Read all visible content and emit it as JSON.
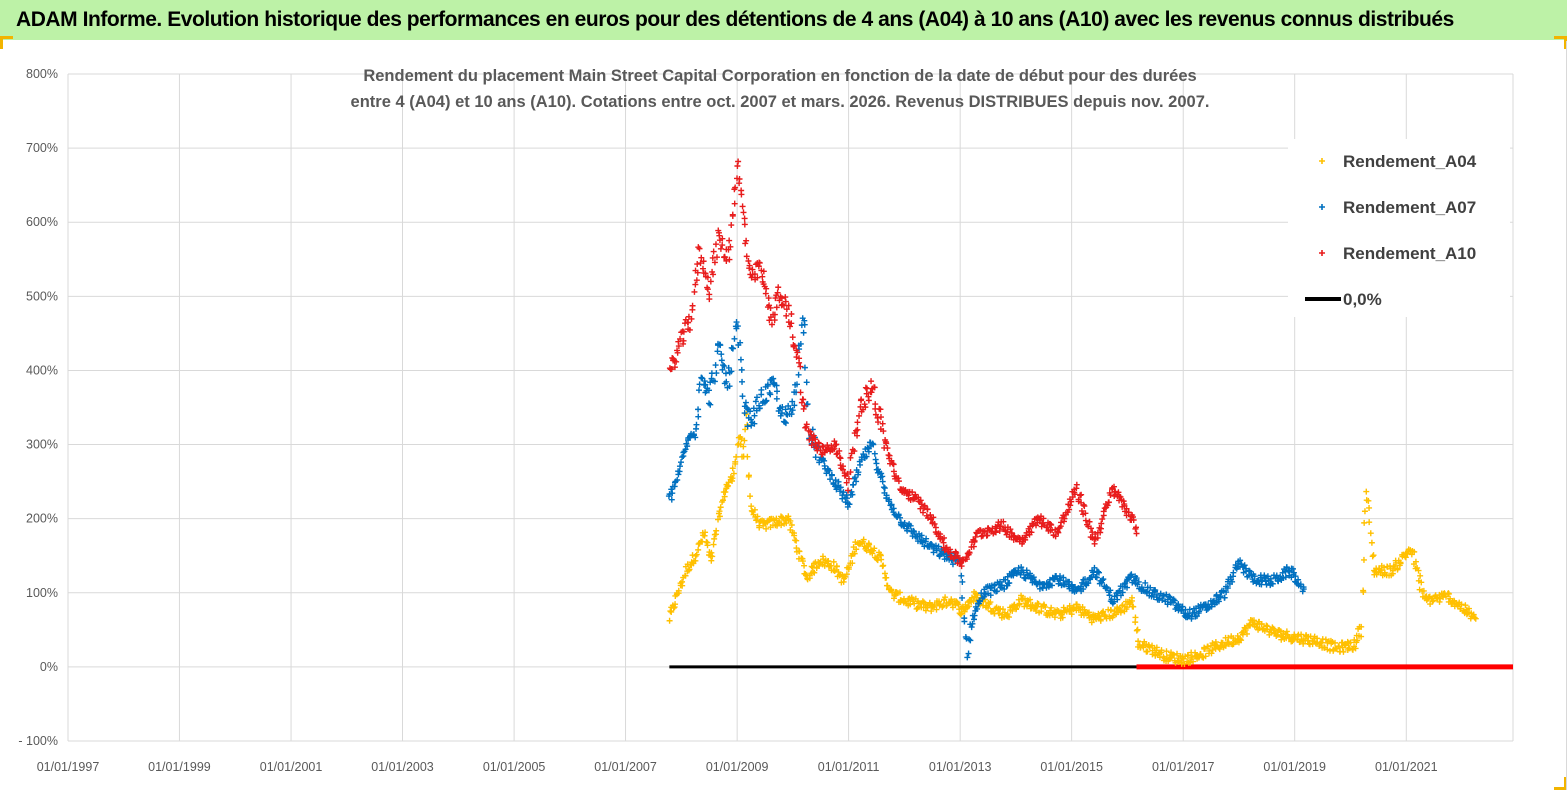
{
  "banner": {
    "title": "ADAM Informe. Evolution historique des performances en euros pour des détentions de 4 ans (A04) à 10 ans (A10) avec les revenus connus distribués"
  },
  "chart_data": {
    "type": "scatter",
    "title": [
      "Rendement du placement Main Street Capital Corporation en fonction de la date de début pour des durées",
      "entre 4 (A04) et 10 ans (A10). Cotations entre oct. 2007 et mars. 2026. Revenus DISTRIBUES depuis nov. 2007."
    ],
    "xlabel": "",
    "ylabel": "",
    "x_axis": {
      "type": "date",
      "range": [
        "1997-01-01",
        "2022-12-01"
      ],
      "ticks": [
        "01/01/1997",
        "01/01/1999",
        "01/01/2001",
        "01/01/2003",
        "01/01/2005",
        "01/01/2007",
        "01/01/2009",
        "01/01/2011",
        "01/01/2013",
        "01/01/2015",
        "01/01/2017",
        "01/01/2019",
        "01/01/2021"
      ]
    },
    "y_axis": {
      "range": [
        -100,
        800
      ],
      "unit": "%",
      "ticks": [
        {
          "value": -100,
          "label": "- 100%"
        },
        {
          "value": 0,
          "label": "0%"
        },
        {
          "value": 100,
          "label": "100%"
        },
        {
          "value": 200,
          "label": "200%"
        },
        {
          "value": 300,
          "label": "300%"
        },
        {
          "value": 400,
          "label": "400%"
        },
        {
          "value": 500,
          "label": "500%"
        },
        {
          "value": 600,
          "label": "600%"
        },
        {
          "value": 700,
          "label": "700%"
        },
        {
          "value": 800,
          "label": "800%"
        }
      ]
    },
    "grid": true,
    "legend_position": "top-right",
    "series": [
      {
        "name": "Rendement_A04",
        "color": "#ffc000",
        "marker": "+",
        "points": [
          [
            "2007-10-15",
            65
          ],
          [
            "2007-12-01",
            95
          ],
          [
            "2008-02-01",
            130
          ],
          [
            "2008-04-01",
            150
          ],
          [
            "2008-06-01",
            180
          ],
          [
            "2008-07-15",
            140
          ],
          [
            "2008-09-01",
            200
          ],
          [
            "2008-10-15",
            240
          ],
          [
            "2008-12-01",
            255
          ],
          [
            "2009-01-15",
            310
          ],
          [
            "2009-02-15",
            280
          ],
          [
            "2009-03-01",
            340
          ],
          [
            "2009-04-01",
            215
          ],
          [
            "2009-06-01",
            190
          ],
          [
            "2009-09-01",
            195
          ],
          [
            "2009-12-01",
            200
          ],
          [
            "2010-02-01",
            160
          ],
          [
            "2010-04-01",
            120
          ],
          [
            "2010-07-01",
            145
          ],
          [
            "2010-10-01",
            135
          ],
          [
            "2010-12-01",
            115
          ],
          [
            "2011-03-01",
            170
          ],
          [
            "2011-06-01",
            160
          ],
          [
            "2011-08-01",
            145
          ],
          [
            "2011-10-01",
            100
          ],
          [
            "2012-01-01",
            90
          ],
          [
            "2012-06-01",
            80
          ],
          [
            "2012-11-01",
            90
          ],
          [
            "2013-01-15",
            75
          ],
          [
            "2013-04-01",
            95
          ],
          [
            "2013-08-01",
            80
          ],
          [
            "2013-11-01",
            70
          ],
          [
            "2014-02-01",
            90
          ],
          [
            "2014-06-01",
            80
          ],
          [
            "2014-10-01",
            70
          ],
          [
            "2015-02-01",
            80
          ],
          [
            "2015-06-01",
            65
          ],
          [
            "2015-11-01",
            75
          ],
          [
            "2016-02-01",
            90
          ],
          [
            "2016-03-15",
            30
          ],
          [
            "2016-06-01",
            25
          ],
          [
            "2016-09-01",
            15
          ],
          [
            "2017-01-01",
            10
          ],
          [
            "2017-04-01",
            15
          ],
          [
            "2017-09-01",
            30
          ],
          [
            "2018-01-01",
            40
          ],
          [
            "2018-04-01",
            60
          ],
          [
            "2018-09-01",
            45
          ],
          [
            "2019-01-01",
            40
          ],
          [
            "2019-06-01",
            35
          ],
          [
            "2019-10-01",
            25
          ],
          [
            "2020-02-01",
            30
          ],
          [
            "2020-03-15",
            60
          ],
          [
            "2020-04-15",
            240
          ],
          [
            "2020-06-01",
            130
          ],
          [
            "2020-10-01",
            130
          ],
          [
            "2021-02-01",
            160
          ],
          [
            "2021-05-01",
            90
          ],
          [
            "2021-10-01",
            95
          ],
          [
            "2022-01-01",
            80
          ],
          [
            "2022-04-01",
            65
          ]
        ]
      },
      {
        "name": "Rendement_A07",
        "color": "#0070c0",
        "marker": "+",
        "points": [
          [
            "2007-10-15",
            225
          ],
          [
            "2007-12-15",
            260
          ],
          [
            "2008-02-01",
            300
          ],
          [
            "2008-04-01",
            320
          ],
          [
            "2008-05-15",
            400
          ],
          [
            "2008-07-01",
            360
          ],
          [
            "2008-09-01",
            430
          ],
          [
            "2008-11-01",
            380
          ],
          [
            "2009-01-01",
            460
          ],
          [
            "2009-02-15",
            350
          ],
          [
            "2009-04-01",
            330
          ],
          [
            "2009-06-01",
            360
          ],
          [
            "2009-09-01",
            380
          ],
          [
            "2009-11-01",
            330
          ],
          [
            "2010-01-01",
            350
          ],
          [
            "2010-03-15",
            480
          ],
          [
            "2010-04-15",
            320
          ],
          [
            "2010-07-01",
            280
          ],
          [
            "2010-10-01",
            250
          ],
          [
            "2011-01-01",
            220
          ],
          [
            "2011-04-01",
            280
          ],
          [
            "2011-06-01",
            300
          ],
          [
            "2011-09-01",
            230
          ],
          [
            "2011-12-01",
            200
          ],
          [
            "2012-03-01",
            180
          ],
          [
            "2012-07-01",
            160
          ],
          [
            "2012-10-01",
            150
          ],
          [
            "2013-01-01",
            140
          ],
          [
            "2013-02-15",
            15
          ],
          [
            "2013-03-15",
            60
          ],
          [
            "2013-06-01",
            100
          ],
          [
            "2013-10-01",
            110
          ],
          [
            "2014-02-01",
            130
          ],
          [
            "2014-06-01",
            110
          ],
          [
            "2014-10-01",
            120
          ],
          [
            "2015-02-01",
            100
          ],
          [
            "2015-06-01",
            130
          ],
          [
            "2015-10-01",
            90
          ],
          [
            "2016-02-01",
            120
          ],
          [
            "2016-06-01",
            100
          ],
          [
            "2016-10-01",
            90
          ],
          [
            "2017-02-01",
            70
          ],
          [
            "2017-06-01",
            80
          ],
          [
            "2017-10-01",
            100
          ],
          [
            "2018-01-01",
            140
          ],
          [
            "2018-04-01",
            120
          ],
          [
            "2018-08-01",
            115
          ],
          [
            "2018-12-01",
            130
          ],
          [
            "2019-03-01",
            105
          ]
        ]
      },
      {
        "name": "Rendement_A10",
        "color": "#e81c1c",
        "marker": "+",
        "points": [
          [
            "2007-10-15",
            395
          ],
          [
            "2007-12-15",
            430
          ],
          [
            "2008-03-01",
            470
          ],
          [
            "2008-05-01",
            560
          ],
          [
            "2008-07-01",
            510
          ],
          [
            "2008-09-01",
            580
          ],
          [
            "2008-11-01",
            550
          ],
          [
            "2009-01-01",
            680
          ],
          [
            "2009-02-15",
            600
          ],
          [
            "2009-04-01",
            520
          ],
          [
            "2009-06-01",
            540
          ],
          [
            "2009-08-15",
            470
          ],
          [
            "2009-10-01",
            500
          ],
          [
            "2009-12-01",
            480
          ],
          [
            "2010-02-01",
            420
          ],
          [
            "2010-04-01",
            320
          ],
          [
            "2010-07-01",
            290
          ],
          [
            "2010-10-01",
            300
          ],
          [
            "2011-01-01",
            250
          ],
          [
            "2011-03-15",
            350
          ],
          [
            "2011-06-01",
            380
          ],
          [
            "2011-09-01",
            300
          ],
          [
            "2011-12-01",
            240
          ],
          [
            "2012-03-01",
            230
          ],
          [
            "2012-07-01",
            200
          ],
          [
            "2012-10-01",
            160
          ],
          [
            "2013-01-15",
            140
          ],
          [
            "2013-05-01",
            180
          ],
          [
            "2013-10-01",
            190
          ],
          [
            "2014-02-01",
            170
          ],
          [
            "2014-06-01",
            200
          ],
          [
            "2014-10-01",
            180
          ],
          [
            "2015-02-01",
            240
          ],
          [
            "2015-06-01",
            170
          ],
          [
            "2015-10-01",
            240
          ],
          [
            "2016-02-01",
            200
          ],
          [
            "2016-03-01",
            180
          ]
        ]
      },
      {
        "name": "0,0%",
        "color": "#000000",
        "type": "line",
        "points": [
          [
            "2007-10-15",
            0
          ],
          [
            "2016-03-01",
            0
          ]
        ]
      }
    ],
    "extra_marks": [
      {
        "note": "red zero band",
        "color": "#ff0000",
        "from": "2016-03-01",
        "to": "2022-12-01",
        "value": 0
      }
    ]
  }
}
